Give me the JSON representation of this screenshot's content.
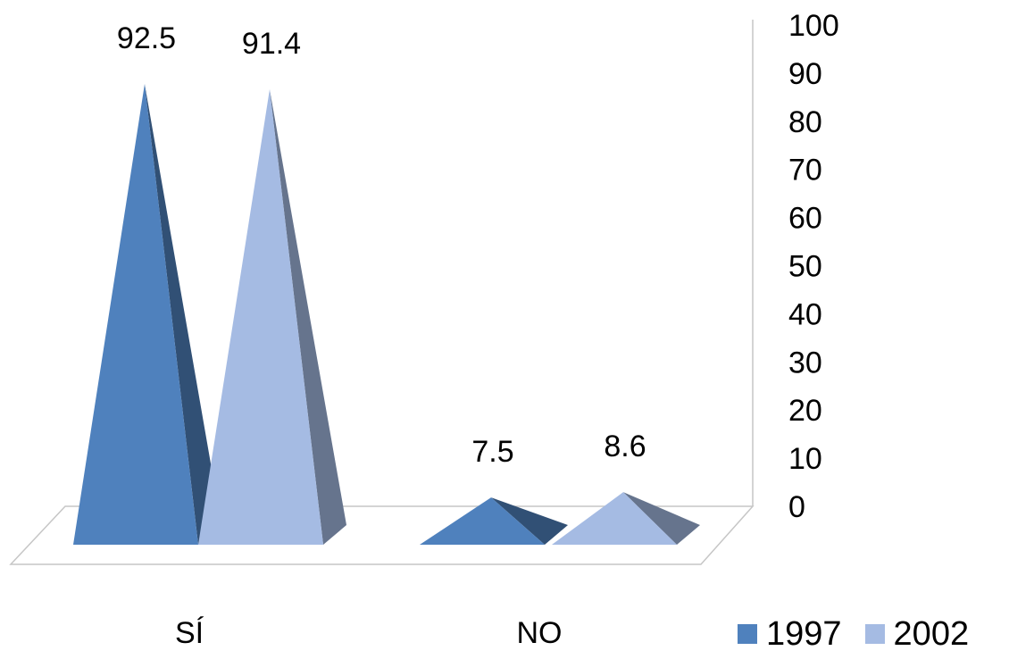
{
  "chart_data": {
    "type": "bar",
    "bar_shape": "pyramid",
    "projection": "3d",
    "categories": [
      "SÍ",
      "NO"
    ],
    "series": [
      {
        "name": "1997",
        "values": [
          92.5,
          7.5
        ],
        "color": "#4f81bd"
      },
      {
        "name": "2002",
        "values": [
          91.4,
          8.6
        ],
        "color": "#a5bbe3"
      }
    ],
    "data_labels": [
      [
        "92.5",
        "7.5"
      ],
      [
        "91.4",
        "8.6"
      ]
    ],
    "yticks": [
      "0",
      "10",
      "20",
      "30",
      "40",
      "50",
      "60",
      "70",
      "80",
      "90",
      "100"
    ],
    "ylim": [
      0,
      100
    ],
    "y_axis_side": "right",
    "grid": false,
    "legend_position": "bottom-right",
    "title": "",
    "xlabel": "",
    "ylabel": ""
  }
}
